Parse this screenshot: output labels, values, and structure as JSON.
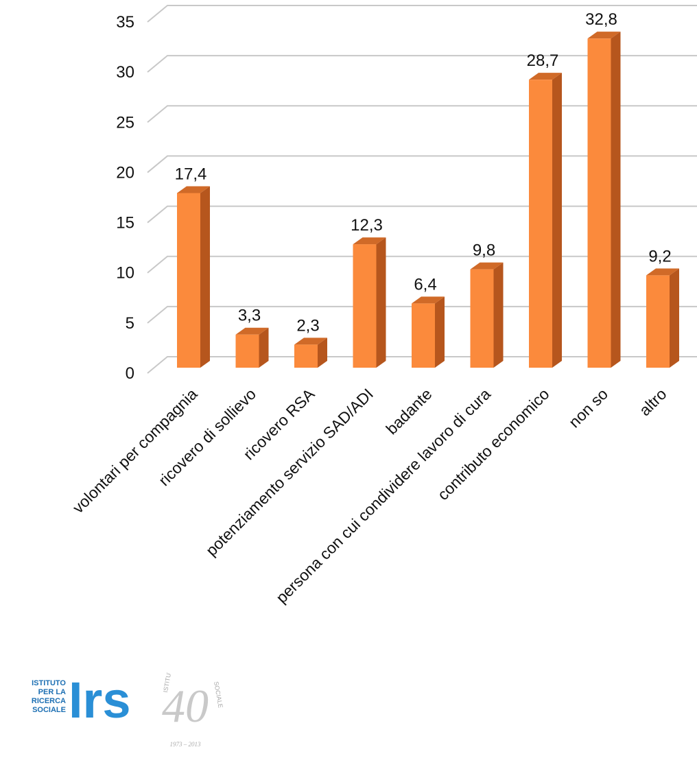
{
  "chart_data": {
    "type": "bar",
    "categories": [
      "volontari per compagnia",
      "ricovero di sollievo",
      "ricovero RSA",
      "potenziamento servizio SAD/ADI",
      "badante",
      "persona con cui condividere lavoro di cura",
      "contributo economico",
      "non so",
      "altro"
    ],
    "values": [
      17.4,
      3.3,
      2.3,
      12.3,
      6.4,
      9.8,
      28.7,
      32.8,
      9.2
    ],
    "data_labels": [
      "17,4",
      "3,3",
      "2,3",
      "12,3",
      "6,4",
      "9,8",
      "28,7",
      "32,8",
      "9,2"
    ],
    "yticks": [
      "0",
      "5",
      "10",
      "15",
      "20",
      "25",
      "30",
      "35"
    ],
    "ylim": [
      0,
      35
    ],
    "grid": true,
    "style": "3d-column",
    "colors": {
      "bar_front": "#fb8a3c",
      "bar_side": "#b6561d",
      "bar_top": "#d06a28",
      "grid": "#c8c8c8"
    }
  },
  "logo": {
    "small_text": [
      "ISTITUTO",
      "PER LA",
      "RICERCA",
      "SOCIALE"
    ],
    "mark": "Irs",
    "anniversary": "40",
    "ring_left": "ISTITUTO",
    "ring_right": "SOCIALE",
    "years": "1973 – 2013"
  }
}
